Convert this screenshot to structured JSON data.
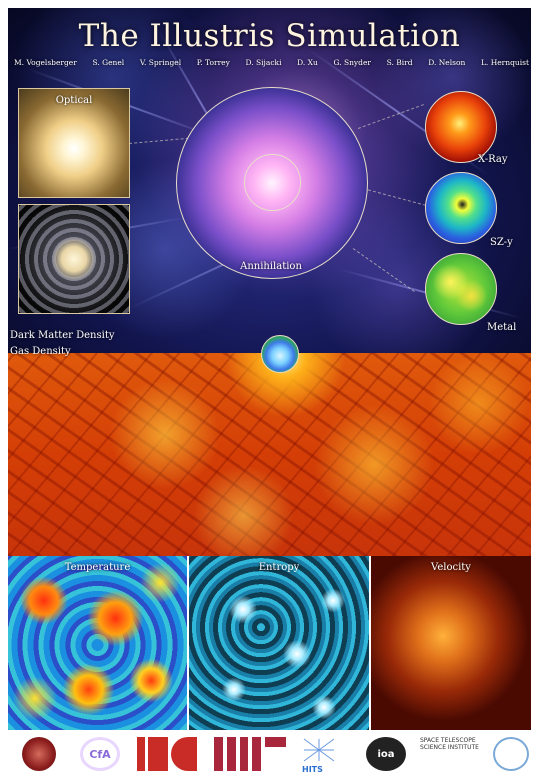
{
  "title": "The Illustris Simulation",
  "authors": [
    "M. Vogelsberger",
    "S. Genel",
    "V. Springel",
    "P. Torrey",
    "D. Sijacki",
    "D. Xu",
    "G. Snyder",
    "S. Bird",
    "D. Nelson",
    "L. Hernquist"
  ],
  "panels": {
    "optical": "Optical",
    "xray": "X-Ray",
    "sz": "SZ-y",
    "metal": "Metal",
    "annihilation": "Annihilation",
    "dark_matter": "Dark Matter Density",
    "gas": "Gas Density",
    "temperature": "Temperature",
    "entropy": "Entropy",
    "velocity": "Velocity"
  },
  "logos": {
    "cfa": "CfA",
    "hits": "HITS",
    "ioa": "ioa",
    "stsci": "SPACE TELESCOPE SCIENCE INSTITUTE"
  },
  "colors": {
    "title": "#fff4e0",
    "dark_bg": "#12154e",
    "gas_orange": "#d43e06"
  }
}
